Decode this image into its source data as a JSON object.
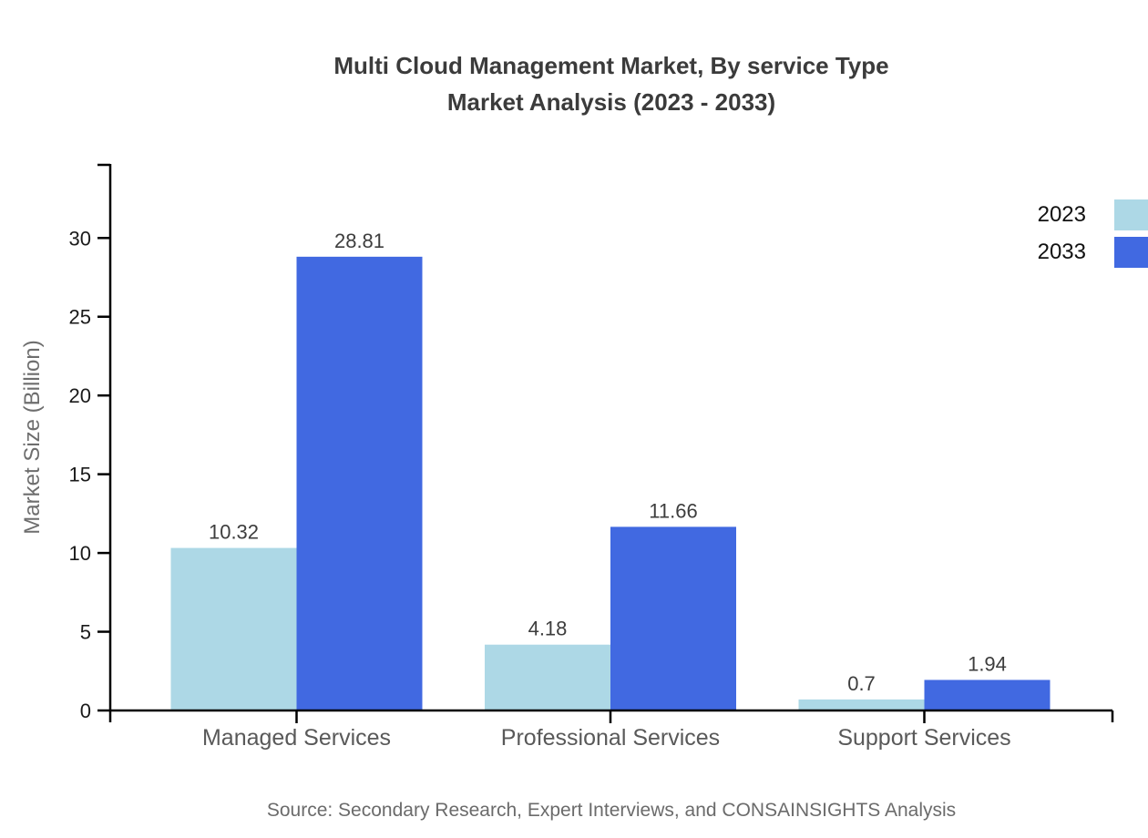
{
  "header": {
    "title": "Multi Cloud Management Market, By service Type",
    "subtitle": "Market Analysis (2023 - 2033)"
  },
  "chart_data": {
    "type": "bar",
    "title": "Multi Cloud Management Market, By service Type",
    "subtitle": "Market Analysis (2023 - 2033)",
    "categories": [
      "Managed Services",
      "Professional Services",
      "Support Services"
    ],
    "series": [
      {
        "name": "2023",
        "color": "#ADD8E6",
        "values": [
          10.32,
          4.18,
          0.7
        ]
      },
      {
        "name": "2033",
        "color": "#4169E1",
        "values": [
          28.81,
          11.66,
          1.94
        ]
      }
    ],
    "value_labels": {
      "2023": [
        "10.32",
        "4.18",
        "0.7"
      ],
      "2033": [
        "28.81",
        "11.66",
        "1.94"
      ]
    },
    "xlabel": "",
    "ylabel": "Market Size (Billion)",
    "yticks": [
      0,
      5,
      10,
      15,
      20,
      25,
      30
    ],
    "ylim": [
      0,
      34.7
    ],
    "grid": false,
    "legend_position": "top-right",
    "bar_value_label_color": "#3d3d3d",
    "axis_color": "#000000",
    "tick_label_color": "#1a1a1a",
    "category_label_color": "#595959"
  },
  "footer": {
    "source": "Source: Secondary Research, Expert Interviews, and CONSAINSIGHTS Analysis"
  }
}
